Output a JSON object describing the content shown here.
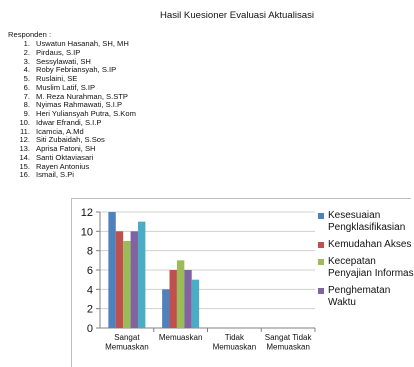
{
  "title": "Hasil Kuesioner Evaluasi Aktualisasi",
  "respondents": {
    "heading": "Responden :",
    "items": [
      {
        "num": "1.",
        "name": "Uswatun Hasanah, SH, MH"
      },
      {
        "num": "2.",
        "name": "Pirdaus, S.IP"
      },
      {
        "num": "3.",
        "name": "Sessylawati, SH"
      },
      {
        "num": "4.",
        "name": "Roby Febriansyah, S.IP"
      },
      {
        "num": "5.",
        "name": "Ruslaini, SE"
      },
      {
        "num": "6.",
        "name": "Muslim Latif, S.IP"
      },
      {
        "num": "7.",
        "name": "M. Reza Nurahman, S.STP"
      },
      {
        "num": "8.",
        "name": "Nyimas Rahmawati, S.I.P"
      },
      {
        "num": "9.",
        "name": "Heri Yuliansyah Putra, S.Kom"
      },
      {
        "num": "10.",
        "name": "Idwar Efrandi, S.I.P"
      },
      {
        "num": "11.",
        "name": "Icamcia, A.Md"
      },
      {
        "num": "12.",
        "name": "Siti Zubaidah, S.Sos"
      },
      {
        "num": "13.",
        "name": "Aprisa Fatoni, SH"
      },
      {
        "num": "14.",
        "name": "Santi Oktaviasari"
      },
      {
        "num": "15.",
        "name": "Rayen Antonius"
      },
      {
        "num": "16.",
        "name": "Ismail, S.Pi"
      }
    ]
  },
  "chart_data": {
    "type": "bar",
    "categories": [
      [
        "Sangat",
        "Memuaskan"
      ],
      [
        "Memuaskan"
      ],
      [
        "Tidak",
        "Memuaskan"
      ],
      [
        "Sangat Tidak",
        "Memuaskan"
      ]
    ],
    "series": [
      {
        "name": [
          "Kesesuaian",
          "Pengklasifikasian"
        ],
        "color": "#4f81bd",
        "values": [
          12,
          4,
          0,
          0
        ]
      },
      {
        "name": [
          "Kemudahan Akses"
        ],
        "color": "#c0504d",
        "values": [
          10,
          6,
          0,
          0
        ]
      },
      {
        "name": [
          "Kecepatan",
          "Penyajian Informas"
        ],
        "color": "#9bbb59",
        "values": [
          9,
          7,
          0,
          0
        ]
      },
      {
        "name": [
          "Penghematan",
          "Waktu"
        ],
        "color": "#8064a2",
        "values": [
          10,
          6,
          0,
          0
        ]
      },
      {
        "name": [],
        "color": "#4bacc6",
        "values": [
          11,
          5,
          0,
          0
        ]
      }
    ],
    "yticks": [
      0,
      2,
      4,
      6,
      8,
      10,
      12
    ],
    "ylim": [
      0,
      12
    ],
    "legend_position": "right"
  }
}
